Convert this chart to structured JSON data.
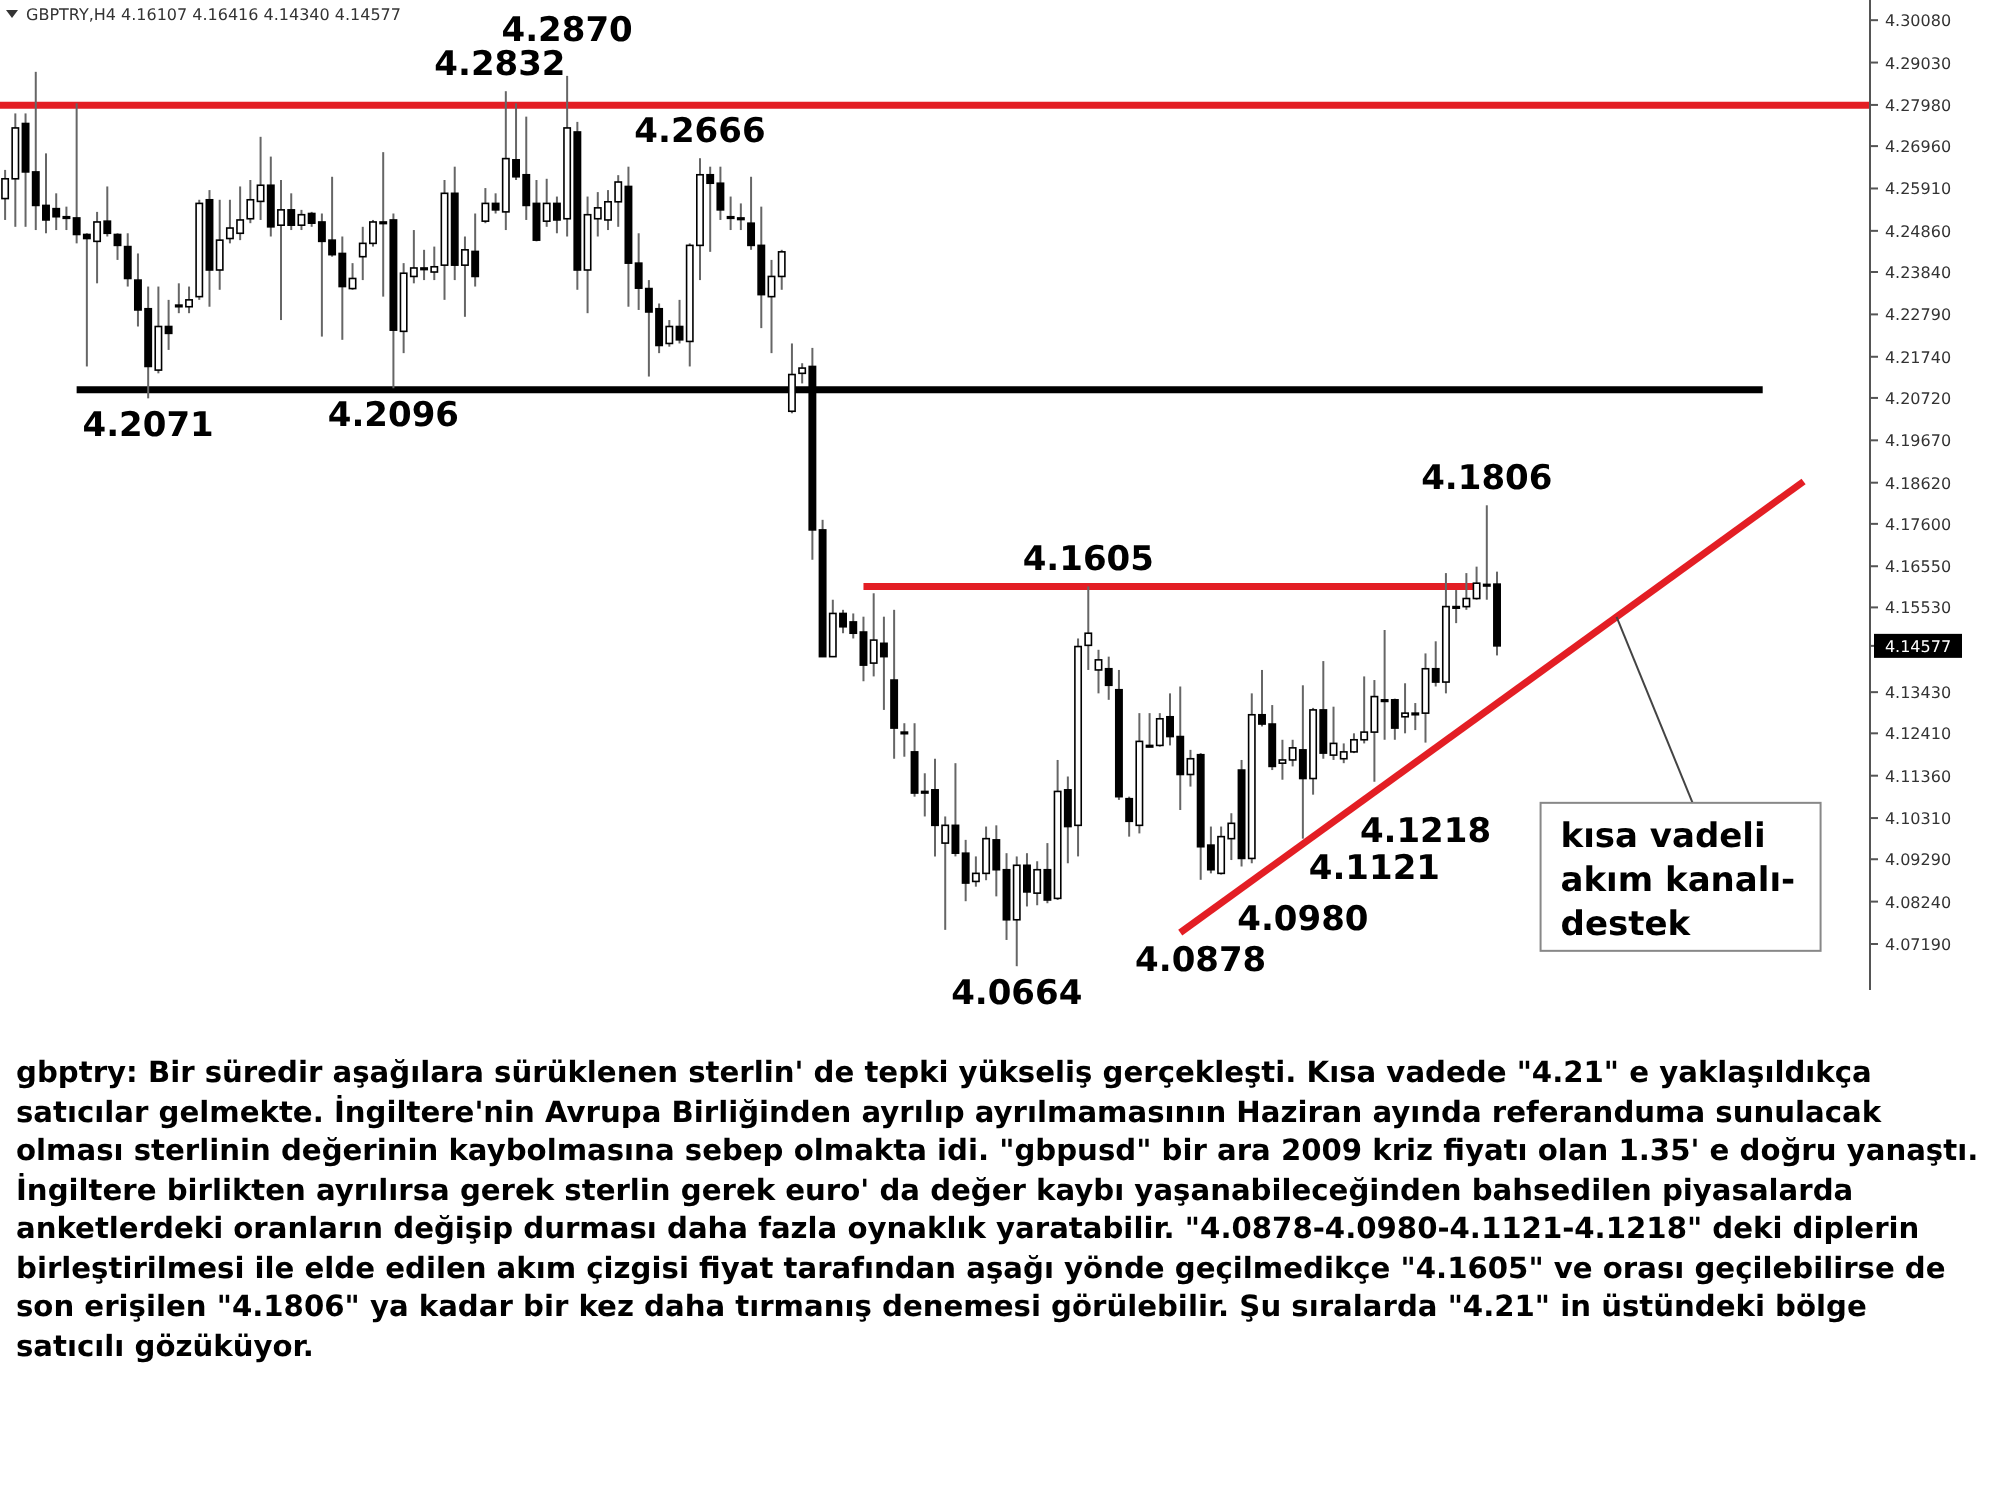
{
  "chart_data": {
    "type": "candlestick",
    "title": "GBPTRY,H4 4.16107 4.16416 4.14340 4.14577",
    "categories": [
      null,
      null,
      null,
      null,
      null,
      null,
      null,
      null,
      null,
      null,
      null,
      null,
      null,
      null,
      null,
      null,
      null,
      null,
      null,
      null,
      null,
      null,
      null,
      null,
      null,
      null,
      null,
      null,
      null,
      null,
      null,
      null,
      null,
      null,
      null,
      null,
      null,
      null,
      null,
      null,
      null,
      null,
      null,
      null,
      null,
      null,
      null,
      null,
      null,
      null,
      null,
      null,
      null,
      null,
      null,
      null,
      null,
      null,
      null,
      null,
      null,
      null,
      null,
      null,
      null,
      null,
      null,
      null,
      null,
      null,
      null,
      null,
      null,
      null,
      null,
      null,
      null,
      null,
      null,
      null,
      null,
      null,
      null,
      null,
      null,
      null,
      null,
      null,
      null,
      null,
      null,
      null,
      null,
      null,
      null,
      null,
      null,
      null,
      null,
      null,
      null,
      null,
      null,
      null,
      null,
      null,
      null,
      null,
      null,
      null,
      null,
      null,
      null,
      null,
      null,
      null,
      null,
      null,
      null,
      null,
      null,
      null,
      null,
      null,
      null,
      null,
      null,
      null,
      null,
      null,
      null,
      null,
      null,
      null,
      null,
      null,
      null,
      null,
      null,
      null,
      null,
      null,
      null,
      null,
      null,
      null,
      null,
      null,
      null,
      null,
      null,
      null,
      null,
      null,
      null,
      null,
      null,
      null,
      null,
      null,
      null,
      null,
      null,
      null,
      null,
      null,
      null,
      null,
      null,
      null,
      null,
      null,
      null,
      null,
      null,
      null,
      null,
      null,
      null,
      null,
      null,
      null,
      null
    ],
    "ylim": [
      4.0605,
      4.3058
    ],
    "yticks": [
      {
        "value": 4.3008,
        "label": "4.30080"
      },
      {
        "value": 4.2903,
        "label": "4.29030"
      },
      {
        "value": 4.2798,
        "label": "4.27980"
      },
      {
        "value": 4.2696,
        "label": "4.26960"
      },
      {
        "value": 4.2591,
        "label": "4.25910"
      },
      {
        "value": 4.2486,
        "label": "4.24860"
      },
      {
        "value": 4.2384,
        "label": "4.23840"
      },
      {
        "value": 4.2279,
        "label": "4.22790"
      },
      {
        "value": 4.2174,
        "label": "4.21740"
      },
      {
        "value": 4.2072,
        "label": "4.20720"
      },
      {
        "value": 4.1967,
        "label": "4.19670"
      },
      {
        "value": 4.1862,
        "label": "4.18620"
      },
      {
        "value": 4.176,
        "label": "4.17600"
      },
      {
        "value": 4.1655,
        "label": "4.16550"
      },
      {
        "value": 4.1553,
        "label": "4.15530"
      },
      {
        "value": 4.14577,
        "label": "4.14577"
      },
      {
        "value": 4.1343,
        "label": "4.13430"
      },
      {
        "value": 4.1241,
        "label": "4.12410"
      },
      {
        "value": 4.1136,
        "label": "4.11360"
      },
      {
        "value": 4.1031,
        "label": "4.10310"
      },
      {
        "value": 4.0929,
        "label": "4.09290"
      },
      {
        "value": 4.0824,
        "label": "4.08240"
      },
      {
        "value": 4.0719,
        "label": "4.07190"
      }
    ],
    "tick_labels": "y",
    "ref_lines": [
      {
        "axis": "y",
        "value": 4.2797,
        "color": "#e31e24"
      }
    ],
    "series": [
      {
        "type": "line",
        "color": "#000000",
        "values": [
          null,
          null,
          null,
          null,
          null,
          null,
          null,
          4.2092,
          null,
          null,
          null,
          null,
          null,
          null,
          null,
          null,
          null,
          null,
          null,
          null,
          null,
          null,
          null,
          null,
          null,
          null,
          null,
          null,
          null,
          null,
          null,
          null,
          null,
          null,
          null,
          null,
          null,
          null,
          null,
          null,
          null,
          null,
          null,
          null,
          null,
          null,
          null,
          null,
          null,
          null,
          null,
          null,
          null,
          null,
          null,
          null,
          null,
          null,
          null,
          null,
          null,
          null,
          null,
          null,
          null,
          null,
          null,
          null,
          null,
          null,
          null,
          null,
          null,
          null,
          null,
          null,
          null,
          null,
          null,
          null,
          null,
          null,
          null,
          null,
          null,
          null,
          null,
          null,
          null,
          null,
          null,
          null,
          null,
          null,
          null,
          null,
          null,
          null,
          null,
          null,
          null,
          null,
          null,
          null,
          null,
          null,
          null,
          null,
          null,
          null,
          null,
          null,
          null,
          null,
          null,
          null,
          null,
          null,
          null,
          null,
          null,
          null,
          null,
          null,
          null,
          null,
          null,
          null,
          null,
          null,
          null,
          null,
          null,
          null,
          null,
          null,
          null,
          null,
          null,
          null,
          null,
          null,
          null,
          null,
          null,
          null,
          null,
          null,
          null,
          null,
          null,
          null,
          null,
          null,
          null,
          null,
          null,
          null,
          null,
          null,
          null,
          null,
          null,
          null,
          null,
          null,
          null,
          null,
          null,
          null,
          null,
          null,
          4.2092,
          null,
          null,
          null,
          null,
          null,
          null,
          null,
          null,
          null,
          null
        ]
      },
      {
        "type": "line",
        "color": "#e31e24",
        "values": [
          null,
          null,
          null,
          null,
          null,
          null,
          null,
          null,
          null,
          null,
          null,
          null,
          null,
          null,
          null,
          null,
          null,
          null,
          null,
          null,
          null,
          null,
          null,
          null,
          null,
          null,
          null,
          null,
          null,
          null,
          null,
          null,
          null,
          null,
          null,
          null,
          null,
          null,
          null,
          null,
          null,
          null,
          null,
          null,
          null,
          null,
          null,
          null,
          null,
          null,
          null,
          null,
          null,
          null,
          null,
          null,
          null,
          null,
          null,
          null,
          null,
          null,
          null,
          null,
          null,
          null,
          null,
          null,
          null,
          null,
          null,
          null,
          null,
          null,
          null,
          null,
          null,
          null,
          null,
          null,
          null,
          null,
          null,
          null,
          4.1605,
          null,
          null,
          null,
          null,
          null,
          null,
          null,
          null,
          null,
          null,
          null,
          null,
          null,
          null,
          null,
          null,
          null,
          null,
          null,
          null,
          null,
          null,
          null,
          null,
          null,
          null,
          null,
          null,
          null,
          null,
          null,
          null,
          null,
          null,
          null,
          null,
          null,
          null,
          null,
          null,
          null,
          null,
          null,
          null,
          null,
          null,
          null,
          null,
          null,
          null,
          null,
          null,
          null,
          null,
          null,
          null,
          null,
          null,
          null,
          4.1605,
          null,
          null,
          null,
          null,
          null,
          null,
          null,
          null,
          null,
          null,
          null,
          null,
          null,
          null,
          null,
          null,
          null,
          null,
          null,
          null,
          null,
          null,
          null,
          null,
          null,
          null,
          null,
          null,
          null,
          null,
          null,
          null,
          null,
          null,
          null,
          null,
          null,
          null
        ]
      },
      {
        "type": "line",
        "color": "#e31e24",
        "values": [
          null,
          null,
          null,
          null,
          null,
          null,
          null,
          null,
          null,
          null,
          null,
          null,
          null,
          null,
          null,
          null,
          null,
          null,
          null,
          null,
          null,
          null,
          null,
          null,
          null,
          null,
          null,
          null,
          null,
          null,
          null,
          null,
          null,
          null,
          null,
          null,
          null,
          null,
          null,
          null,
          null,
          null,
          null,
          null,
          null,
          null,
          null,
          null,
          null,
          null,
          null,
          null,
          null,
          null,
          null,
          null,
          null,
          null,
          null,
          null,
          null,
          null,
          null,
          null,
          null,
          null,
          null,
          null,
          null,
          null,
          null,
          null,
          null,
          null,
          null,
          null,
          null,
          null,
          null,
          null,
          null,
          null,
          null,
          null,
          null,
          null,
          null,
          null,
          null,
          null,
          null,
          null,
          null,
          null,
          null,
          null,
          null,
          null,
          null,
          null,
          null,
          null,
          null,
          null,
          null,
          null,
          null,
          null,
          null,
          null,
          null,
          null,
          null,
          null,
          null,
          4.0747,
          null,
          null,
          null,
          null,
          null,
          null,
          null,
          null,
          null,
          null,
          null,
          null,
          null,
          null,
          null,
          null,
          null,
          null,
          null,
          null,
          null,
          null,
          null,
          null,
          null,
          null,
          null,
          null,
          null,
          null,
          null,
          null,
          null,
          null,
          null,
          null,
          null,
          null,
          null,
          null,
          null,
          null,
          null,
          null,
          null,
          null,
          null,
          null,
          null,
          null,
          null,
          null,
          null,
          null,
          null,
          null,
          null,
          null,
          null,
          null,
          4.1865,
          null,
          null,
          null,
          null,
          null,
          null
        ]
      },
      {
        "color": "#000000",
        "ohlc": [
          [
            4.2566,
            4.2637,
            4.2513,
            4.2615
          ],
          [
            4.2615,
            4.2777,
            4.2496,
            4.2741
          ],
          [
            4.2752,
            4.2777,
            4.2496,
            4.2632
          ],
          [
            4.2632,
            4.288,
            4.2488,
            4.2549
          ],
          [
            4.2549,
            4.2678,
            4.248,
            4.2513
          ],
          [
            4.2541,
            4.2579,
            4.2488,
            4.2521
          ],
          [
            4.2521,
            4.2546,
            4.2488,
            4.252
          ],
          [
            4.2518,
            4.2802,
            4.2455,
            4.2477
          ],
          [
            4.2477,
            4.248,
            4.215,
            4.2467
          ],
          [
            4.246,
            4.2533,
            4.2356,
            4.2508
          ],
          [
            4.251,
            4.2596,
            4.2472,
            4.248
          ],
          [
            4.2477,
            4.248,
            4.2414,
            4.245
          ],
          [
            4.2447,
            4.248,
            4.2348,
            4.2368
          ],
          [
            4.2364,
            4.243,
            4.2249,
            4.229
          ],
          [
            4.2293,
            4.2348,
            4.2071,
            4.215
          ],
          [
            4.2141,
            4.2348,
            4.2133,
            4.2249
          ],
          [
            4.2249,
            4.2315,
            4.2191,
            4.2232
          ],
          [
            4.2302,
            4.2356,
            4.2282,
            4.2301
          ],
          [
            4.2298,
            4.2348,
            4.2282,
            4.2315
          ],
          [
            4.2323,
            4.2563,
            4.2315,
            4.2554
          ],
          [
            4.2563,
            4.2587,
            4.2298,
            4.2389
          ],
          [
            4.2389,
            4.2563,
            4.234,
            4.2463
          ],
          [
            4.2467,
            4.2563,
            4.2455,
            4.2493
          ],
          [
            4.248,
            4.2596,
            4.2463,
            4.2513
          ],
          [
            4.2516,
            4.2612,
            4.2505,
            4.2563
          ],
          [
            4.2559,
            4.2719,
            4.2513,
            4.2599
          ],
          [
            4.2599,
            4.267,
            4.2472,
            4.2496
          ],
          [
            4.25,
            4.2612,
            4.2265,
            4.2538
          ],
          [
            4.2538,
            4.2579,
            4.2488,
            4.25
          ],
          [
            4.25,
            4.2538,
            4.2488,
            4.2526
          ],
          [
            4.2529,
            4.2533,
            4.2496,
            4.2505
          ],
          [
            4.2508,
            4.2529,
            4.2224,
            4.246
          ],
          [
            4.2463,
            4.262,
            4.2422,
            4.2427
          ],
          [
            4.243,
            4.2472,
            4.2216,
            4.2348
          ],
          [
            4.2343,
            4.2406,
            4.234,
            4.2368
          ],
          [
            4.2422,
            4.2496,
            4.2364,
            4.2455
          ],
          [
            4.2455,
            4.2513,
            4.2447,
            4.2508
          ],
          [
            4.2508,
            4.2681,
            4.2323,
            4.2507
          ],
          [
            4.2513,
            4.2529,
            4.2096,
            4.224
          ],
          [
            4.2237,
            4.2406,
            4.2183,
            4.2381
          ],
          [
            4.2373,
            4.2488,
            4.2356,
            4.2394
          ],
          [
            4.2394,
            4.2439,
            4.2364,
            4.2393
          ],
          [
            4.2384,
            4.2447,
            4.2364,
            4.2397
          ],
          [
            4.2401,
            4.2612,
            4.2315,
            4.2579
          ],
          [
            4.2579,
            4.2645,
            4.2364,
            4.2401
          ],
          [
            4.2401,
            4.2472,
            4.2273,
            4.2439
          ],
          [
            4.2435,
            4.2529,
            4.2348,
            4.2373
          ],
          [
            4.251,
            4.2592,
            4.2505,
            4.2554
          ],
          [
            4.2554,
            4.2579,
            4.2529,
            4.2538
          ],
          [
            4.2533,
            4.2832,
            4.2488,
            4.2665
          ],
          [
            4.2662,
            4.2802,
            4.2612,
            4.262
          ],
          [
            4.2625,
            4.2769,
            4.2513,
            4.2549
          ],
          [
            4.2554,
            4.2612,
            4.246,
            4.2463
          ],
          [
            4.251,
            4.2615,
            4.2496,
            4.2554
          ],
          [
            4.2554,
            4.2571,
            4.248,
            4.2513
          ],
          [
            4.2516,
            4.287,
            4.2472,
            4.2741
          ],
          [
            4.2731,
            4.2756,
            4.234,
            4.2389
          ],
          [
            4.2389,
            4.2571,
            4.2282,
            4.2526
          ],
          [
            4.2516,
            4.2582,
            4.2472,
            4.2543
          ],
          [
            4.2513,
            4.2587,
            4.2488,
            4.2558
          ],
          [
            4.2558,
            4.2624,
            4.2496,
            4.2607
          ],
          [
            4.2596,
            4.2645,
            4.2298,
            4.2406
          ],
          [
            4.2406,
            4.248,
            4.229,
            4.2344
          ],
          [
            4.2343,
            4.2364,
            4.2125,
            4.2285
          ],
          [
            4.2293,
            4.2306,
            4.2183,
            4.2202
          ],
          [
            4.2207,
            4.2265,
            4.2199,
            4.2249
          ],
          [
            4.2249,
            4.2315,
            4.2207,
            4.2216
          ],
          [
            4.2212,
            4.2455,
            4.215,
            4.245
          ],
          [
            4.245,
            4.2666,
            4.2364,
            4.2625
          ],
          [
            4.2625,
            4.2645,
            4.2434,
            4.2604
          ],
          [
            4.2604,
            4.2645,
            4.2513,
            4.2538
          ],
          [
            4.2521,
            4.2571,
            4.2488,
            4.252
          ],
          [
            4.2518,
            4.2554,
            4.2488,
            4.2517
          ],
          [
            4.2505,
            4.262,
            4.2439,
            4.245
          ],
          [
            4.245,
            4.2546,
            4.2245,
            4.2328
          ],
          [
            4.2323,
            4.2414,
            4.2183,
            4.2373
          ],
          [
            4.2373,
            4.2439,
            4.234,
            4.2434
          ],
          [
            4.2039,
            4.2207,
            4.2034,
            4.213
          ],
          [
            4.2133,
            4.2158,
            4.2108,
            4.2146
          ],
          [
            4.215,
            4.2196,
            4.1671,
            4.1745
          ],
          [
            4.1745,
            4.177,
            4.143,
            4.1431
          ],
          [
            4.1431,
            4.1572,
            4.143,
            4.1538
          ],
          [
            4.1538,
            4.1547,
            4.1489,
            4.1505
          ],
          [
            4.1517,
            4.1538,
            4.1476,
            4.1489
          ],
          [
            4.1492,
            4.153,
            4.137,
            4.141
          ],
          [
            4.1415,
            4.1588,
            4.1382,
            4.1472
          ],
          [
            4.1464,
            4.153,
            4.1299,
            4.1431
          ],
          [
            4.1373,
            4.1547,
            4.1178,
            4.1254
          ],
          [
            4.1244,
            4.1266,
            4.1183,
            4.1243
          ],
          [
            4.1195,
            4.1266,
            4.1084,
            4.1093
          ],
          [
            4.1097,
            4.1142,
            4.1035,
            4.1096
          ],
          [
            4.1101,
            4.1178,
            4.0936,
            4.1013
          ],
          [
            4.0969,
            4.1035,
            4.0754,
            4.1013
          ],
          [
            4.1013,
            4.1167,
            4.0936,
            4.0944
          ],
          [
            4.0944,
            4.0977,
            4.0825,
            4.087
          ],
          [
            4.0874,
            4.0936,
            4.0861,
            4.0894
          ],
          [
            4.0894,
            4.101,
            4.0877,
            4.098
          ],
          [
            4.0977,
            4.1013,
            4.0837,
            4.0903
          ],
          [
            4.0903,
            4.0944,
            4.0729,
            4.0779
          ],
          [
            4.0779,
            4.0936,
            4.0664,
            4.0914
          ],
          [
            4.0914,
            4.0944,
            4.0812,
            4.0848
          ],
          [
            4.0845,
            4.0924,
            4.0815,
            4.0903
          ],
          [
            4.0903,
            4.0969,
            4.082,
            4.0828
          ],
          [
            4.0832,
            4.1175,
            4.0828,
            4.1097
          ],
          [
            4.1101,
            4.1134,
            4.0919,
            4.101
          ],
          [
            4.1013,
            4.1476,
            4.0936,
            4.1456
          ],
          [
            4.1459,
            4.1605,
            4.1398,
            4.1489
          ],
          [
            4.1398,
            4.1448,
            4.134,
            4.1423
          ],
          [
            4.1401,
            4.1431,
            4.1324,
            4.136
          ],
          [
            4.1349,
            4.1398,
            4.1076,
            4.1084
          ],
          [
            4.1079,
            4.1084,
            4.0985,
            4.1023
          ],
          [
            4.1013,
            4.1291,
            4.0993,
            4.1221
          ],
          [
            4.1211,
            4.1291,
            4.1208,
            4.121
          ],
          [
            4.1211,
            4.1291,
            4.1208,
            4.1277
          ],
          [
            4.1282,
            4.134,
            4.1211,
            4.1233
          ],
          [
            4.1233,
            4.1357,
            4.1051,
            4.1139
          ],
          [
            4.1139,
            4.12,
            4.1109,
            4.1178
          ],
          [
            4.1188,
            4.1192,
            4.0878,
            4.096
          ],
          [
            4.0964,
            4.101,
            4.0894,
            4.0903
          ],
          [
            4.0894,
            4.101,
            4.0891,
            4.0985
          ],
          [
            4.098,
            4.1043,
            4.0927,
            4.1018
          ],
          [
            4.115,
            4.1175,
            4.0911,
            4.0931
          ],
          [
            4.0931,
            4.134,
            4.0919,
            4.1287
          ],
          [
            4.1287,
            4.1398,
            4.1258,
            4.1264
          ],
          [
            4.1264,
            4.1311,
            4.115,
            4.1159
          ],
          [
            4.1167,
            4.1225,
            4.1126,
            4.1175
          ],
          [
            4.1175,
            4.1225,
            4.1159,
            4.1205
          ],
          [
            4.12,
            4.136,
            4.098,
            4.1129
          ],
          [
            4.1129,
            4.1304,
            4.1089,
            4.1299
          ],
          [
            4.1299,
            4.142,
            4.1178,
            4.1192
          ],
          [
            4.1187,
            4.1307,
            4.1175,
            4.1216
          ],
          [
            4.1178,
            4.1216,
            4.1167,
            4.1195
          ],
          [
            4.1195,
            4.1241,
            4.1192,
            4.1225
          ],
          [
            4.1225,
            4.1382,
            4.1216,
            4.1244
          ],
          [
            4.1244,
            4.1373,
            4.1121,
            4.1332
          ],
          [
            4.1324,
            4.1497,
            4.1225,
            4.1323
          ],
          [
            4.1324,
            4.1327,
            4.1225,
            4.1254
          ],
          [
            4.1282,
            4.1365,
            4.1241,
            4.1291
          ],
          [
            4.1291,
            4.1316,
            4.1249,
            4.129
          ],
          [
            4.1291,
            4.1439,
            4.1218,
            4.1401
          ],
          [
            4.1401,
            4.1469,
            4.1357,
            4.1368
          ],
          [
            4.1368,
            4.1638,
            4.134,
            4.1555
          ],
          [
            4.1555,
            4.1596,
            4.1514,
            4.1554
          ],
          [
            4.1555,
            4.1638,
            4.1547,
            4.1575
          ],
          [
            4.1575,
            4.1654,
            4.1572,
            4.1613
          ],
          [
            4.1608,
            4.1806,
            4.1572,
            4.161
          ],
          [
            4.16107,
            4.16416,
            4.1434,
            4.14577
          ],
          null,
          null,
          null,
          null,
          null,
          null,
          null,
          null,
          null,
          null,
          null,
          null,
          null,
          null,
          null,
          null,
          null,
          null,
          null,
          null,
          null,
          null,
          null,
          null,
          null,
          null,
          null,
          null,
          null,
          null,
          null,
          null,
          null,
          null,
          null,
          null
        ]
      }
    ],
    "annotations": [
      {
        "text": "4.2832",
        "y": 4.2832
      },
      {
        "text": "4.2870",
        "y": 4.287
      },
      {
        "text": "4.2666",
        "y": 4.2666
      },
      {
        "text": "4.2071",
        "y": 4.2071
      },
      {
        "text": "4.2096",
        "y": 4.2096
      },
      {
        "text": "4.1605",
        "y": 4.1605
      },
      {
        "text": "4.0664",
        "y": 4.0664
      },
      {
        "text": "4.1806",
        "y": 4.1806
      },
      {
        "text": "4.1218",
        "y": 4.1218
      },
      {
        "text": "4.1121",
        "y": 4.1121
      },
      {
        "text": "4.0980",
        "y": 4.098
      },
      {
        "text": "4.0878",
        "y": 4.0878
      },
      "kısa vadeli akım kanalı-destek",
      "gbptry: Bir süredir aşağılara sürüklenen sterlin' de tepki yükseliş gerçekleşti. Kısa vadede \"4.21\" e yaklaşıldıkça satıcılar gelmekte. İngiltere'nin Avrupa Birliğinden ayrılıp ayrılmamasının Haziran ayında referanduma sunulacak olması sterlinin değerinin kaybolmasına sebep olmakta idi. \"gbpusd\" bir ara 2009 kriz fiyatı olan 1.35' e doğru yanaştı. İngiltere birlikten ayrılırsa gerek sterlin gerek euro' da değer kaybı yaşanabileceğinden bahsedilen piyasalarda anketlerdeki oranların değişip durması daha fazla oynaklık yaratabilir. \"4.0878-4.0980-4.1121-4.1218\" deki diplerin birleştirilmesi ile elde edilen akım çizgisi fiyat tarafından aşağı yönde geçilmedikçe \"4.1605\" ve orası geçilebilirse de son erişilen \"4.1806\" ya kadar bir kez daha tırmanış denemesi görülebilir. Şu sıralarda \"4.21\" in üstündeki bölge satıcılı gözüküyor."
    ]
  }
}
